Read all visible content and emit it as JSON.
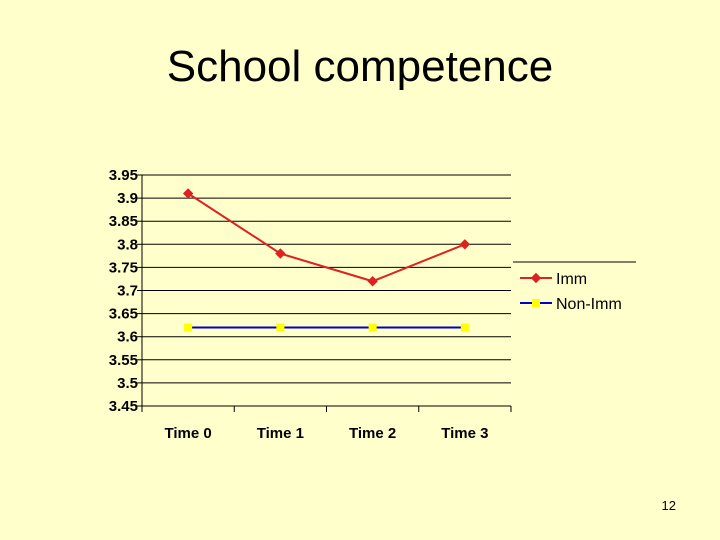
{
  "slide": {
    "title": "School competence",
    "page_number": "12"
  },
  "chart_data": {
    "type": "line",
    "title": "",
    "xlabel": "",
    "ylabel": "",
    "categories": [
      "Time 0",
      "Time 1",
      "Time 2",
      "Time 3"
    ],
    "ylim": [
      3.45,
      3.95
    ],
    "yticks": [
      "3.95",
      "3.9",
      "3.85",
      "3.8",
      "3.75",
      "3.7",
      "3.65",
      "3.6",
      "3.55",
      "3.5",
      "3.45"
    ],
    "grid": true,
    "legend_position": "right",
    "series": [
      {
        "name": "Imm",
        "values": [
          3.91,
          3.78,
          3.72,
          3.8
        ],
        "color": "#dd2222",
        "marker": "diamond"
      },
      {
        "name": "Non-Imm",
        "values": [
          3.62,
          3.62,
          3.62,
          3.62
        ],
        "color": "#0000cc",
        "marker_color": "#ffff00",
        "marker": "square"
      }
    ]
  }
}
